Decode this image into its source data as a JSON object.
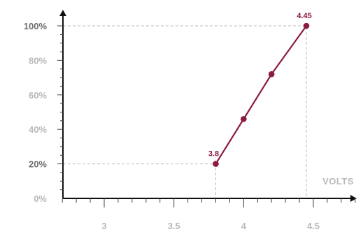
{
  "chart_data": {
    "type": "line",
    "xlabel": "VOLTS",
    "ylabel": "",
    "xlim": [
      2.6,
      4.9
    ],
    "ylim": [
      0,
      105
    ],
    "x_ticks": [
      3,
      3.5,
      4,
      4.5
    ],
    "x_tick_labels": [
      "3",
      "3.5",
      "4",
      "4.5"
    ],
    "y_ticks": [
      0,
      20,
      40,
      60,
      80,
      100
    ],
    "y_tick_labels": [
      "0%",
      "20%",
      "40%",
      "60%",
      "80%",
      "100%"
    ],
    "y_emphasized_ticks": [
      20,
      100
    ],
    "grid": false,
    "series": [
      {
        "color": "#8b1a45",
        "x": [
          3.8,
          4.0,
          4.2,
          4.45
        ],
        "y": [
          20,
          46,
          72,
          100
        ]
      }
    ],
    "annotations": [
      {
        "text": "3.8",
        "x": 3.8,
        "y": 20
      },
      {
        "text": "4.45",
        "x": 4.45,
        "y": 100
      }
    ]
  }
}
